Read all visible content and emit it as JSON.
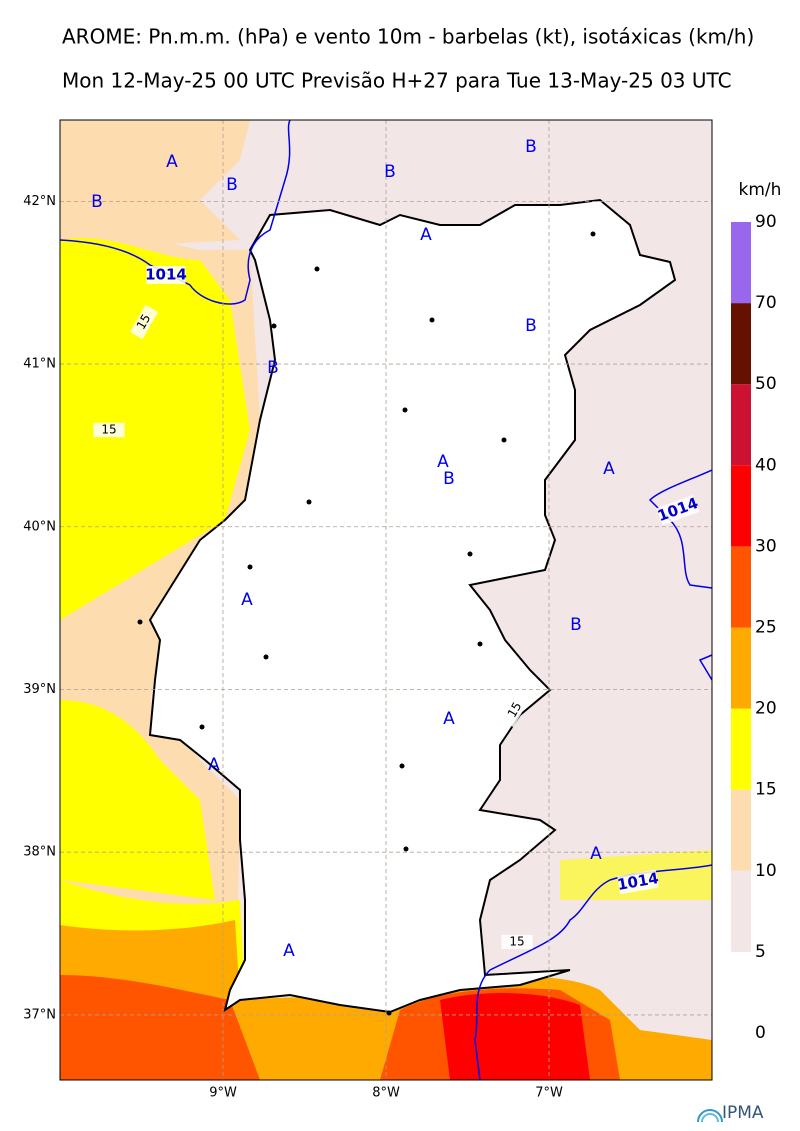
{
  "title": "AROME: Pn.m.m. (hPa) e vento 10m - barbelas (kt), isotáxicas (km/h)",
  "subtitle": "Mon 12-May-25 00 UTC Previsão H+27 para Tue 13-May-25 03 UTC",
  "map": {
    "xlim": [
      -10,
      -6
    ],
    "ylim": [
      36.6,
      42.5
    ],
    "lon_ticks": [
      {
        "value": -9,
        "label": "9°W"
      },
      {
        "value": -8,
        "label": "8°W"
      },
      {
        "value": -7,
        "label": "7°W"
      }
    ],
    "lat_ticks": [
      {
        "value": 42,
        "label": "42°N"
      },
      {
        "value": 41,
        "label": "41°N"
      },
      {
        "value": 40,
        "label": "40°N"
      },
      {
        "value": 39,
        "label": "39°N"
      },
      {
        "value": 38,
        "label": "38°N"
      },
      {
        "value": 37,
        "label": "37°N"
      }
    ],
    "pressure_centers": [
      "A",
      "B",
      "B",
      "B",
      "B",
      "A",
      "B",
      "B",
      "A",
      "B",
      "A",
      "A",
      "B",
      "A",
      "A",
      "A",
      "A"
    ],
    "contour_labels": [
      "1014",
      "1014",
      "1014",
      "15",
      "15",
      "15",
      "15"
    ]
  },
  "colorbar": {
    "unit": "km/h",
    "levels": [
      0,
      5,
      10,
      15,
      20,
      25,
      30,
      40,
      50,
      70,
      90
    ],
    "colors": [
      "#ffffff",
      "#f3e6e6",
      "#fddcb0",
      "#ffff00",
      "#ffaa00",
      "#ff5500",
      "#ff0000",
      "#cc1133",
      "#661100",
      "#9966ee"
    ]
  },
  "logo": "IPMA"
}
